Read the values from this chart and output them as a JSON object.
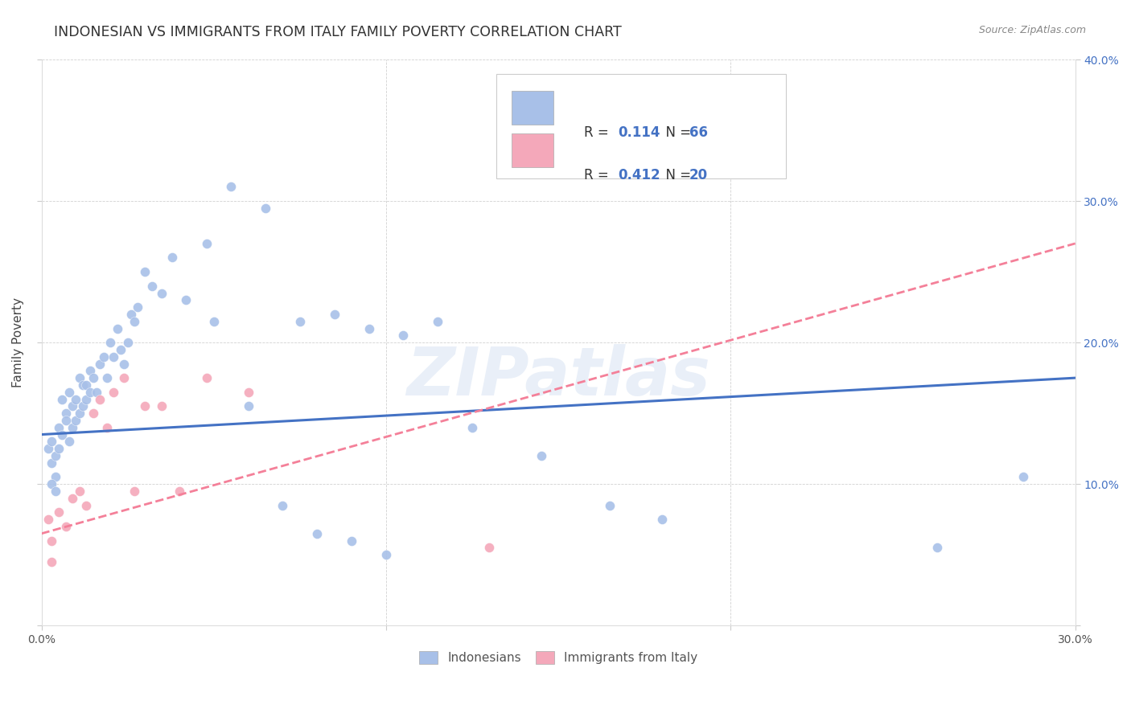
{
  "title": "INDONESIAN VS IMMIGRANTS FROM ITALY FAMILY POVERTY CORRELATION CHART",
  "source": "Source: ZipAtlas.com",
  "ylabel": "Family Poverty",
  "xlim": [
    0.0,
    0.3
  ],
  "ylim": [
    0.0,
    0.4
  ],
  "blue_R": "0.114",
  "blue_N": "66",
  "pink_R": "0.412",
  "pink_N": "20",
  "blue_color": "#A8C0E8",
  "pink_color": "#F4A8BA",
  "blue_line_color": "#4472C4",
  "pink_line_color": "#F48099",
  "watermark": "ZIPatlas",
  "legend_blue_label": "Indonesians",
  "legend_pink_label": "Immigrants from Italy",
  "blue_x": [
    0.002,
    0.003,
    0.003,
    0.004,
    0.004,
    0.005,
    0.005,
    0.006,
    0.006,
    0.007,
    0.007,
    0.008,
    0.008,
    0.009,
    0.009,
    0.01,
    0.01,
    0.011,
    0.011,
    0.012,
    0.012,
    0.013,
    0.013,
    0.014,
    0.014,
    0.015,
    0.016,
    0.017,
    0.018,
    0.019,
    0.02,
    0.021,
    0.022,
    0.023,
    0.024,
    0.025,
    0.026,
    0.027,
    0.028,
    0.03,
    0.032,
    0.035,
    0.038,
    0.042,
    0.048,
    0.055,
    0.065,
    0.075,
    0.085,
    0.095,
    0.105,
    0.115,
    0.125,
    0.145,
    0.165,
    0.18,
    0.05,
    0.06,
    0.07,
    0.08,
    0.09,
    0.1,
    0.26,
    0.285,
    0.003,
    0.004
  ],
  "blue_y": [
    0.125,
    0.13,
    0.115,
    0.12,
    0.105,
    0.14,
    0.125,
    0.16,
    0.135,
    0.15,
    0.145,
    0.165,
    0.13,
    0.155,
    0.14,
    0.16,
    0.145,
    0.175,
    0.15,
    0.17,
    0.155,
    0.17,
    0.16,
    0.18,
    0.165,
    0.175,
    0.165,
    0.185,
    0.19,
    0.175,
    0.2,
    0.19,
    0.21,
    0.195,
    0.185,
    0.2,
    0.22,
    0.215,
    0.225,
    0.25,
    0.24,
    0.235,
    0.26,
    0.23,
    0.27,
    0.31,
    0.295,
    0.215,
    0.22,
    0.21,
    0.205,
    0.215,
    0.14,
    0.12,
    0.085,
    0.075,
    0.215,
    0.155,
    0.085,
    0.065,
    0.06,
    0.05,
    0.055,
    0.105,
    0.1,
    0.095
  ],
  "pink_x": [
    0.002,
    0.003,
    0.005,
    0.007,
    0.009,
    0.011,
    0.013,
    0.015,
    0.017,
    0.019,
    0.021,
    0.024,
    0.027,
    0.03,
    0.035,
    0.04,
    0.048,
    0.06,
    0.13,
    0.003
  ],
  "pink_y": [
    0.075,
    0.06,
    0.08,
    0.07,
    0.09,
    0.095,
    0.085,
    0.15,
    0.16,
    0.14,
    0.165,
    0.175,
    0.095,
    0.155,
    0.155,
    0.095,
    0.175,
    0.165,
    0.055,
    0.045
  ]
}
